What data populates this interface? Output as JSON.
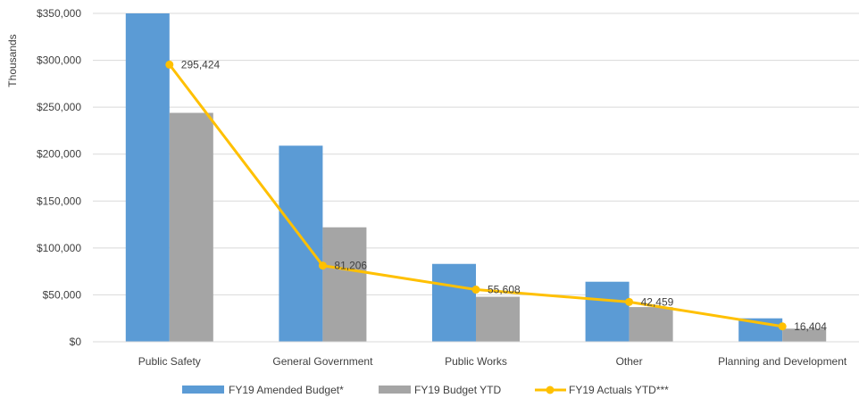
{
  "chart_data": {
    "type": "bar",
    "categories": [
      "Public Safety",
      "General Government",
      "Public Works",
      "Other",
      "Planning and Development"
    ],
    "series": [
      {
        "name": "FY19 Amended Budget*",
        "type": "bar",
        "color": "#5b9bd5",
        "values": [
          350000,
          209000,
          83000,
          64000,
          25000
        ]
      },
      {
        "name": "FY19 Budget YTD",
        "type": "bar",
        "color": "#a5a5a5",
        "values": [
          244000,
          122000,
          48000,
          37000,
          14000
        ]
      },
      {
        "name": "FY19 Actuals YTD***",
        "type": "line",
        "color": "#ffc000",
        "values": [
          295424,
          81206,
          55608,
          42459,
          16404
        ]
      }
    ],
    "data_labels": [
      "295,424",
      "81,206",
      "55,608",
      "42,459",
      "16,404"
    ],
    "y_ticks": [
      0,
      50000,
      100000,
      150000,
      200000,
      250000,
      300000,
      350000
    ],
    "y_tick_labels": [
      "$0",
      "$50,000",
      "$100,000",
      "$150,000",
      "$200,000",
      "$250,000",
      "$300,000",
      "$350,000"
    ],
    "ylabel": "Thousands",
    "xlabel": "",
    "ylim": [
      0,
      350000
    ],
    "grid": true,
    "legend_position": "bottom"
  }
}
